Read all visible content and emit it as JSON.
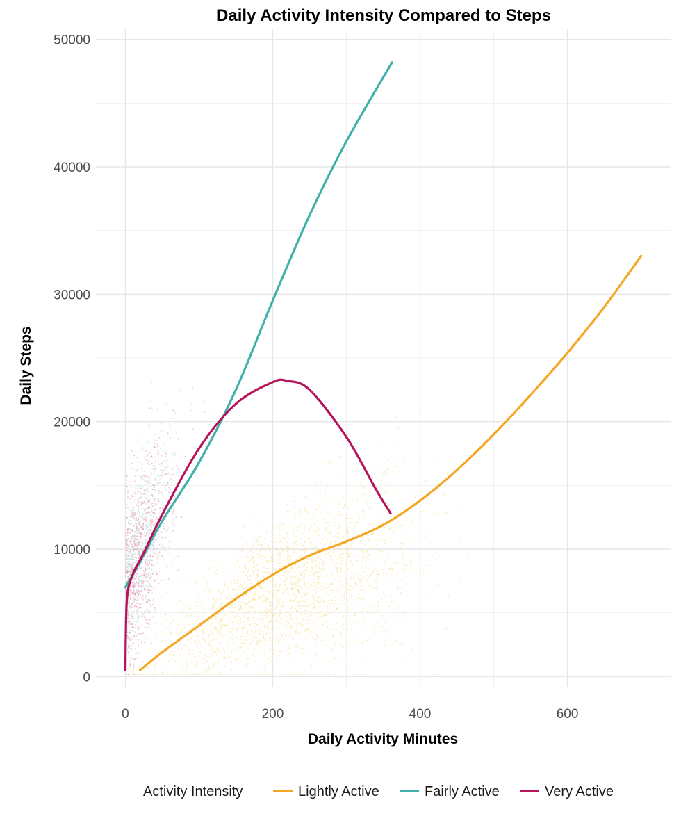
{
  "chart_data": {
    "type": "scatter",
    "title": "Daily Activity Intensity Compared to Steps",
    "xlabel": "Daily Activity Minutes",
    "ylabel": "Daily Steps",
    "xlim": [
      -40,
      740
    ],
    "ylim": [
      -800,
      50800
    ],
    "x_ticks": [
      0,
      200,
      400,
      600
    ],
    "y_ticks": [
      0,
      10000,
      20000,
      30000,
      40000,
      50000
    ],
    "x_tick_labels": [
      "0",
      "200",
      "400",
      "600"
    ],
    "y_tick_labels": [
      "0",
      "10000",
      "20000",
      "30000",
      "40000",
      "50000"
    ],
    "grid": true,
    "legend": {
      "title": "Activity Intensity",
      "placement": "bottom",
      "entries": [
        "Lightly Active",
        "Fairly Active",
        "Very Active"
      ]
    },
    "series": [
      {
        "name": "Lightly Active",
        "color": "#F5A623",
        "smooth_x": [
          20,
          50,
          100,
          150,
          200,
          250,
          300,
          350,
          400,
          450,
          500,
          550,
          600,
          650,
          700
        ],
        "smooth_y": [
          500,
          1900,
          4000,
          6100,
          8000,
          9500,
          10600,
          11900,
          13800,
          16200,
          19000,
          22100,
          25400,
          29000,
          33000
        ]
      },
      {
        "name": "Fairly Active",
        "color": "#3FB0AC",
        "smooth_x": [
          0,
          20,
          50,
          100,
          150,
          200,
          250,
          300,
          362
        ],
        "smooth_y": [
          7000,
          9000,
          12200,
          16800,
          22500,
          29500,
          36200,
          42000,
          48200
        ]
      },
      {
        "name": "Very Active",
        "color": "#B5135A",
        "smooth_x": [
          0,
          2,
          10,
          25,
          50,
          100,
          150,
          200,
          220,
          250,
          300,
          340,
          360
        ],
        "smooth_y": [
          500,
          6000,
          8000,
          9700,
          12700,
          17900,
          21400,
          23100,
          23200,
          22500,
          18800,
          14700,
          12800
        ]
      }
    ],
    "scatter_description_counts": {
      "Lightly Active": 3200,
      "Fairly Active": 900,
      "Very Active": 1100
    }
  }
}
